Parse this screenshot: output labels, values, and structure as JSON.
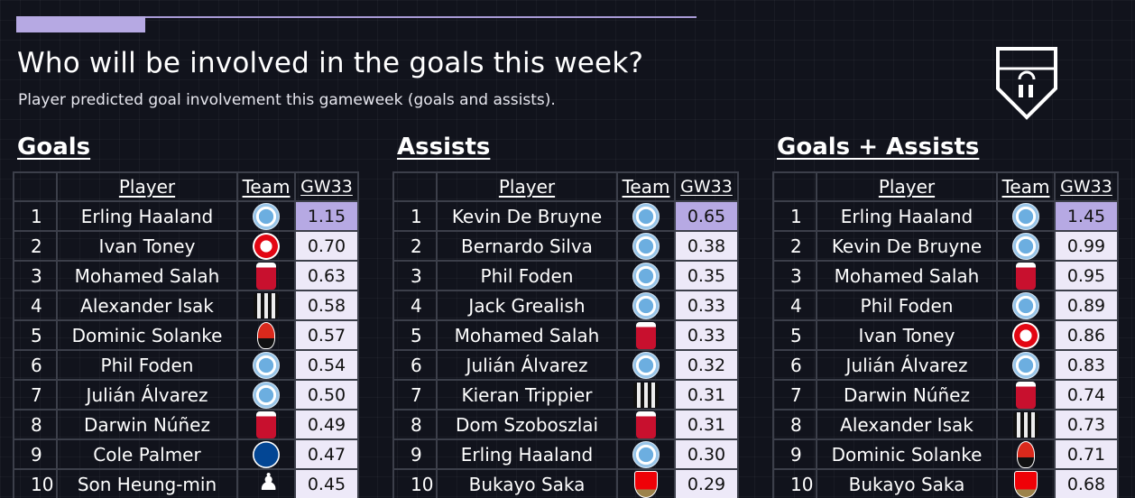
{
  "header": {
    "title": "Who will be involved in the goals this week?",
    "subtitle": "Player predicted goal involvement this gameweek (goals and assists).",
    "progress_fraction": 0.19
  },
  "columns": {
    "player": "Player",
    "team": "Team",
    "value": "GW33"
  },
  "sections": [
    {
      "title": "Goals",
      "rows": [
        {
          "rank": "1",
          "player": "Erling Haaland",
          "team_icon": "man-city-badge-icon",
          "value": "1.15"
        },
        {
          "rank": "2",
          "player": "Ivan Toney",
          "team_icon": "brentford-badge-icon",
          "value": "0.70"
        },
        {
          "rank": "3",
          "player": "Mohamed Salah",
          "team_icon": "liverpool-badge-icon",
          "value": "0.63"
        },
        {
          "rank": "4",
          "player": "Alexander Isak",
          "team_icon": "newcastle-badge-icon",
          "value": "0.58"
        },
        {
          "rank": "5",
          "player": "Dominic Solanke",
          "team_icon": "bournemouth-badge-icon",
          "value": "0.57"
        },
        {
          "rank": "6",
          "player": "Phil Foden",
          "team_icon": "man-city-badge-icon",
          "value": "0.54"
        },
        {
          "rank": "7",
          "player": "Julián Álvarez",
          "team_icon": "man-city-badge-icon",
          "value": "0.50"
        },
        {
          "rank": "8",
          "player": "Darwin Núñez",
          "team_icon": "liverpool-badge-icon",
          "value": "0.49"
        },
        {
          "rank": "9",
          "player": "Cole Palmer",
          "team_icon": "chelsea-badge-icon",
          "value": "0.47"
        },
        {
          "rank": "10",
          "player": "Son Heung-min",
          "team_icon": "tottenham-badge-icon",
          "value": "0.45"
        }
      ]
    },
    {
      "title": "Assists",
      "rows": [
        {
          "rank": "1",
          "player": "Kevin De Bruyne",
          "team_icon": "man-city-badge-icon",
          "value": "0.65"
        },
        {
          "rank": "2",
          "player": "Bernardo Silva",
          "team_icon": "man-city-badge-icon",
          "value": "0.38"
        },
        {
          "rank": "3",
          "player": "Phil Foden",
          "team_icon": "man-city-badge-icon",
          "value": "0.35"
        },
        {
          "rank": "4",
          "player": "Jack Grealish",
          "team_icon": "man-city-badge-icon",
          "value": "0.33"
        },
        {
          "rank": "5",
          "player": "Mohamed Salah",
          "team_icon": "liverpool-badge-icon",
          "value": "0.33"
        },
        {
          "rank": "6",
          "player": "Julián Álvarez",
          "team_icon": "man-city-badge-icon",
          "value": "0.32"
        },
        {
          "rank": "7",
          "player": "Kieran Trippier",
          "team_icon": "newcastle-badge-icon",
          "value": "0.31"
        },
        {
          "rank": "8",
          "player": "Dom Szoboszlai",
          "team_icon": "liverpool-badge-icon",
          "value": "0.31"
        },
        {
          "rank": "9",
          "player": "Erling Haaland",
          "team_icon": "man-city-badge-icon",
          "value": "0.30"
        },
        {
          "rank": "10",
          "player": "Bukayo Saka",
          "team_icon": "arsenal-badge-icon",
          "value": "0.29"
        }
      ]
    },
    {
      "title": "Goals + Assists",
      "rows": [
        {
          "rank": "1",
          "player": "Erling Haaland",
          "team_icon": "man-city-badge-icon",
          "value": "1.45"
        },
        {
          "rank": "2",
          "player": "Kevin De Bruyne",
          "team_icon": "man-city-badge-icon",
          "value": "0.99"
        },
        {
          "rank": "3",
          "player": "Mohamed Salah",
          "team_icon": "liverpool-badge-icon",
          "value": "0.95"
        },
        {
          "rank": "4",
          "player": "Phil Foden",
          "team_icon": "man-city-badge-icon",
          "value": "0.89"
        },
        {
          "rank": "5",
          "player": "Ivan Toney",
          "team_icon": "brentford-badge-icon",
          "value": "0.86"
        },
        {
          "rank": "6",
          "player": "Julián Álvarez",
          "team_icon": "man-city-badge-icon",
          "value": "0.83"
        },
        {
          "rank": "7",
          "player": "Darwin Núñez",
          "team_icon": "liverpool-badge-icon",
          "value": "0.74"
        },
        {
          "rank": "8",
          "player": "Alexander Isak",
          "team_icon": "newcastle-badge-icon",
          "value": "0.73"
        },
        {
          "rank": "9",
          "player": "Dominic Solanke",
          "team_icon": "bournemouth-badge-icon",
          "value": "0.71"
        },
        {
          "rank": "10",
          "player": "Bukayo Saka",
          "team_icon": "arsenal-badge-icon",
          "value": "0.68"
        }
      ]
    }
  ],
  "colors": {
    "background": "#11131c",
    "accent": "#b6a9e3",
    "cell_fill": "#ede9f8"
  }
}
